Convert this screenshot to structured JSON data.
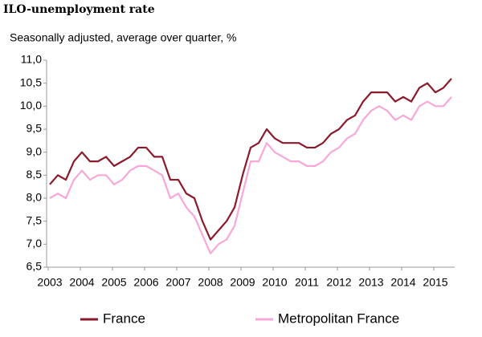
{
  "chart_data": {
    "type": "line",
    "title": "ILO-unemployment rate",
    "subtitle": "Seasonally adjusted, average over quarter, %",
    "categories": [
      "2003",
      null,
      null,
      null,
      "2004",
      null,
      null,
      null,
      "2005",
      null,
      null,
      null,
      "2006",
      null,
      null,
      null,
      "2007",
      null,
      null,
      null,
      "2008",
      null,
      null,
      null,
      "2009",
      null,
      null,
      null,
      "2010",
      null,
      null,
      null,
      "2011",
      null,
      null,
      null,
      "2012",
      null,
      null,
      null,
      "2013",
      null,
      null,
      null,
      "2014",
      null,
      null,
      null,
      "2015",
      null,
      null
    ],
    "series": [
      {
        "name": "France",
        "color": "#8b1a2b",
        "values": [
          8.3,
          8.5,
          8.4,
          8.8,
          9.0,
          8.8,
          8.8,
          8.9,
          8.7,
          8.8,
          8.9,
          9.1,
          9.1,
          8.9,
          8.9,
          8.4,
          8.4,
          8.1,
          8.0,
          7.5,
          7.1,
          7.3,
          7.5,
          7.8,
          8.5,
          9.1,
          9.2,
          9.5,
          9.3,
          9.2,
          9.2,
          9.2,
          9.1,
          9.1,
          9.2,
          9.4,
          9.5,
          9.7,
          9.8,
          10.1,
          10.3,
          10.3,
          10.3,
          10.1,
          10.2,
          10.1,
          10.4,
          10.5,
          10.3,
          10.4,
          10.6
        ]
      },
      {
        "name": "Metropolitan France",
        "color": "#f7a8d8",
        "values": [
          8.0,
          8.1,
          8.0,
          8.4,
          8.6,
          8.4,
          8.5,
          8.5,
          8.3,
          8.4,
          8.6,
          8.7,
          8.7,
          8.6,
          8.5,
          8.0,
          8.1,
          7.8,
          7.6,
          7.2,
          6.8,
          7.0,
          7.1,
          7.4,
          8.1,
          8.8,
          8.8,
          9.2,
          9.0,
          8.9,
          8.8,
          8.8,
          8.7,
          8.7,
          8.8,
          9.0,
          9.1,
          9.3,
          9.4,
          9.7,
          9.9,
          10.0,
          9.9,
          9.7,
          9.8,
          9.7,
          10.0,
          10.1,
          10.0,
          10.0,
          10.2
        ]
      }
    ],
    "ylim": [
      6.5,
      11.0
    ],
    "yticks": [
      {
        "value": 6.5,
        "label": "6,5"
      },
      {
        "value": 7.0,
        "label": "7,0"
      },
      {
        "value": 7.5,
        "label": "7,5"
      },
      {
        "value": 8.0,
        "label": "8,0"
      },
      {
        "value": 8.5,
        "label": "8,5"
      },
      {
        "value": 9.0,
        "label": "9,0"
      },
      {
        "value": 9.5,
        "label": "9,5"
      },
      {
        "value": 10.0,
        "label": "10,0"
      },
      {
        "value": 10.5,
        "label": "10,5"
      },
      {
        "value": 11.0,
        "label": "11,0"
      }
    ],
    "grid": false,
    "legend": "bottom"
  }
}
